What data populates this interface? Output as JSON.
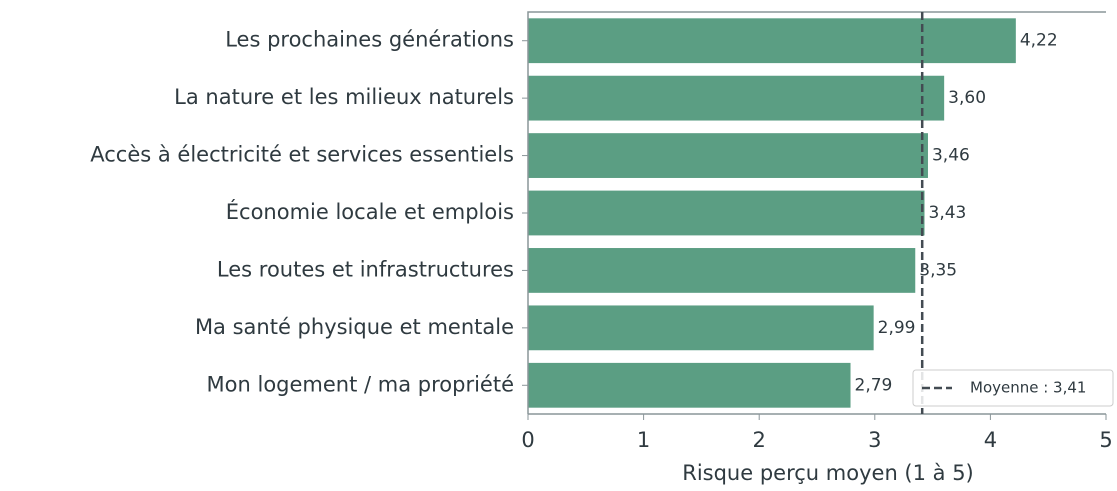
{
  "chart_data": {
    "type": "bar",
    "orientation": "horizontal",
    "xlabel": "Risque perçu moyen (1 à 5)",
    "categories": [
      "Les prochaines générations",
      "La nature et les milieux naturels",
      "Accès à électricité et services essentiels",
      "Économie locale et emplois",
      "Les routes et infrastructures",
      "Ma santé physique et mentale",
      "Mon logement / ma propriété"
    ],
    "values": [
      4.22,
      3.6,
      3.46,
      3.43,
      3.35,
      2.99,
      2.79
    ],
    "value_labels": [
      "4,22",
      "3,60",
      "3,46",
      "3,43",
      "3,35",
      "2,99",
      "2,79"
    ],
    "color": "#5b9e83",
    "xlim": [
      0,
      5
    ],
    "xticks": [
      0,
      1,
      2,
      3,
      4,
      5
    ],
    "mean": {
      "value": 3.41,
      "label": "Moyenne : 3,41"
    },
    "legend": "lower right"
  }
}
